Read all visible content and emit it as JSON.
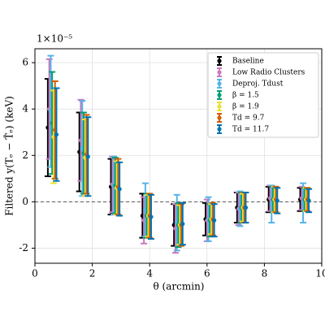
{
  "chart_data": {
    "type": "errorbar",
    "offset_text": "1×10⁻⁵",
    "xlabel": "θ (arcmin)",
    "ylabel": "Filtered y(Tₑ − T̄ₑ) (keV)",
    "xlim": [
      0,
      10
    ],
    "ylim": [
      -2.65,
      6.6
    ],
    "xticks": [
      0,
      2,
      4,
      6,
      8,
      10
    ],
    "yticks": [
      -2,
      0,
      2,
      4,
      6
    ],
    "grid": true,
    "reference_line": 0,
    "legend": "upper right",
    "series": [
      {
        "name": "Baseline",
        "color": "#000000",
        "x": [
          0.45,
          1.55,
          2.65,
          3.75,
          4.85,
          5.95,
          7.05,
          8.15,
          9.25
        ],
        "values": [
          3.2,
          2.15,
          0.65,
          -0.6,
          -1.0,
          -0.75,
          -0.25,
          0.1,
          0.1
        ],
        "errors": [
          2.1,
          1.7,
          1.2,
          0.95,
          0.9,
          0.7,
          0.65,
          0.55,
          0.5
        ]
      },
      {
        "name": "Low Radio Clusters",
        "color": "#cc78bc",
        "x": [
          0.5,
          1.6,
          2.7,
          3.8,
          4.9,
          6.0,
          7.1,
          8.2,
          9.3
        ],
        "values": [
          4.0,
          2.65,
          0.75,
          -0.8,
          -1.15,
          -0.8,
          -0.3,
          0.15,
          0.15
        ],
        "errors": [
          2.15,
          1.75,
          1.2,
          1.0,
          1.05,
          0.9,
          0.7,
          0.55,
          0.5
        ]
      },
      {
        "name": "Deproj. Tdust",
        "color": "#56b4e9",
        "x": [
          0.55,
          1.65,
          2.75,
          3.85,
          4.95,
          6.05,
          7.15,
          8.25,
          9.35
        ],
        "values": [
          3.9,
          2.3,
          0.7,
          -0.35,
          -0.9,
          -0.75,
          -0.3,
          -0.1,
          -0.05
        ],
        "errors": [
          2.4,
          2.05,
          1.25,
          1.15,
          1.2,
          0.95,
          0.75,
          0.8,
          0.85
        ]
      },
      {
        "name": "β = 1.5",
        "color": "#029e73",
        "x": [
          0.6,
          1.7,
          2.8,
          3.9,
          5.0,
          6.1,
          7.2,
          8.3,
          9.4
        ],
        "values": [
          3.4,
          2.1,
          0.7,
          -0.6,
          -1.0,
          -0.8,
          -0.25,
          0.1,
          0.1
        ],
        "errors": [
          2.2,
          1.75,
          1.2,
          0.95,
          0.95,
          0.7,
          0.65,
          0.55,
          0.5
        ]
      },
      {
        "name": "β = 1.9",
        "color": "#ece133",
        "x": [
          0.65,
          1.75,
          2.85,
          3.95,
          5.05,
          6.15,
          7.25,
          8.35,
          9.45
        ],
        "values": [
          2.8,
          1.9,
          0.6,
          -0.6,
          -1.0,
          -0.75,
          -0.25,
          0.1,
          0.1
        ],
        "errors": [
          2.0,
          1.65,
          1.15,
          0.9,
          0.85,
          0.65,
          0.6,
          0.55,
          0.5
        ]
      },
      {
        "name": "Td = 9.7",
        "color": "#d55e00",
        "x": [
          0.7,
          1.8,
          2.9,
          4.0,
          5.1,
          6.2,
          7.3,
          8.4,
          9.5
        ],
        "values": [
          3.1,
          2.05,
          0.65,
          -0.6,
          -1.0,
          -0.75,
          -0.25,
          0.1,
          0.1
        ],
        "errors": [
          2.1,
          1.7,
          1.2,
          0.95,
          0.9,
          0.7,
          0.65,
          0.55,
          0.5
        ]
      },
      {
        "name": "Td = 11.7",
        "color": "#0173b2",
        "x": [
          0.75,
          1.85,
          2.95,
          4.05,
          5.15,
          6.25,
          7.35,
          8.45,
          9.55
        ],
        "values": [
          2.9,
          1.95,
          0.55,
          -0.65,
          -0.95,
          -0.8,
          -0.25,
          0.05,
          0.05
        ],
        "errors": [
          2.0,
          1.7,
          1.15,
          0.95,
          0.9,
          0.7,
          0.65,
          0.55,
          0.5
        ]
      }
    ]
  }
}
